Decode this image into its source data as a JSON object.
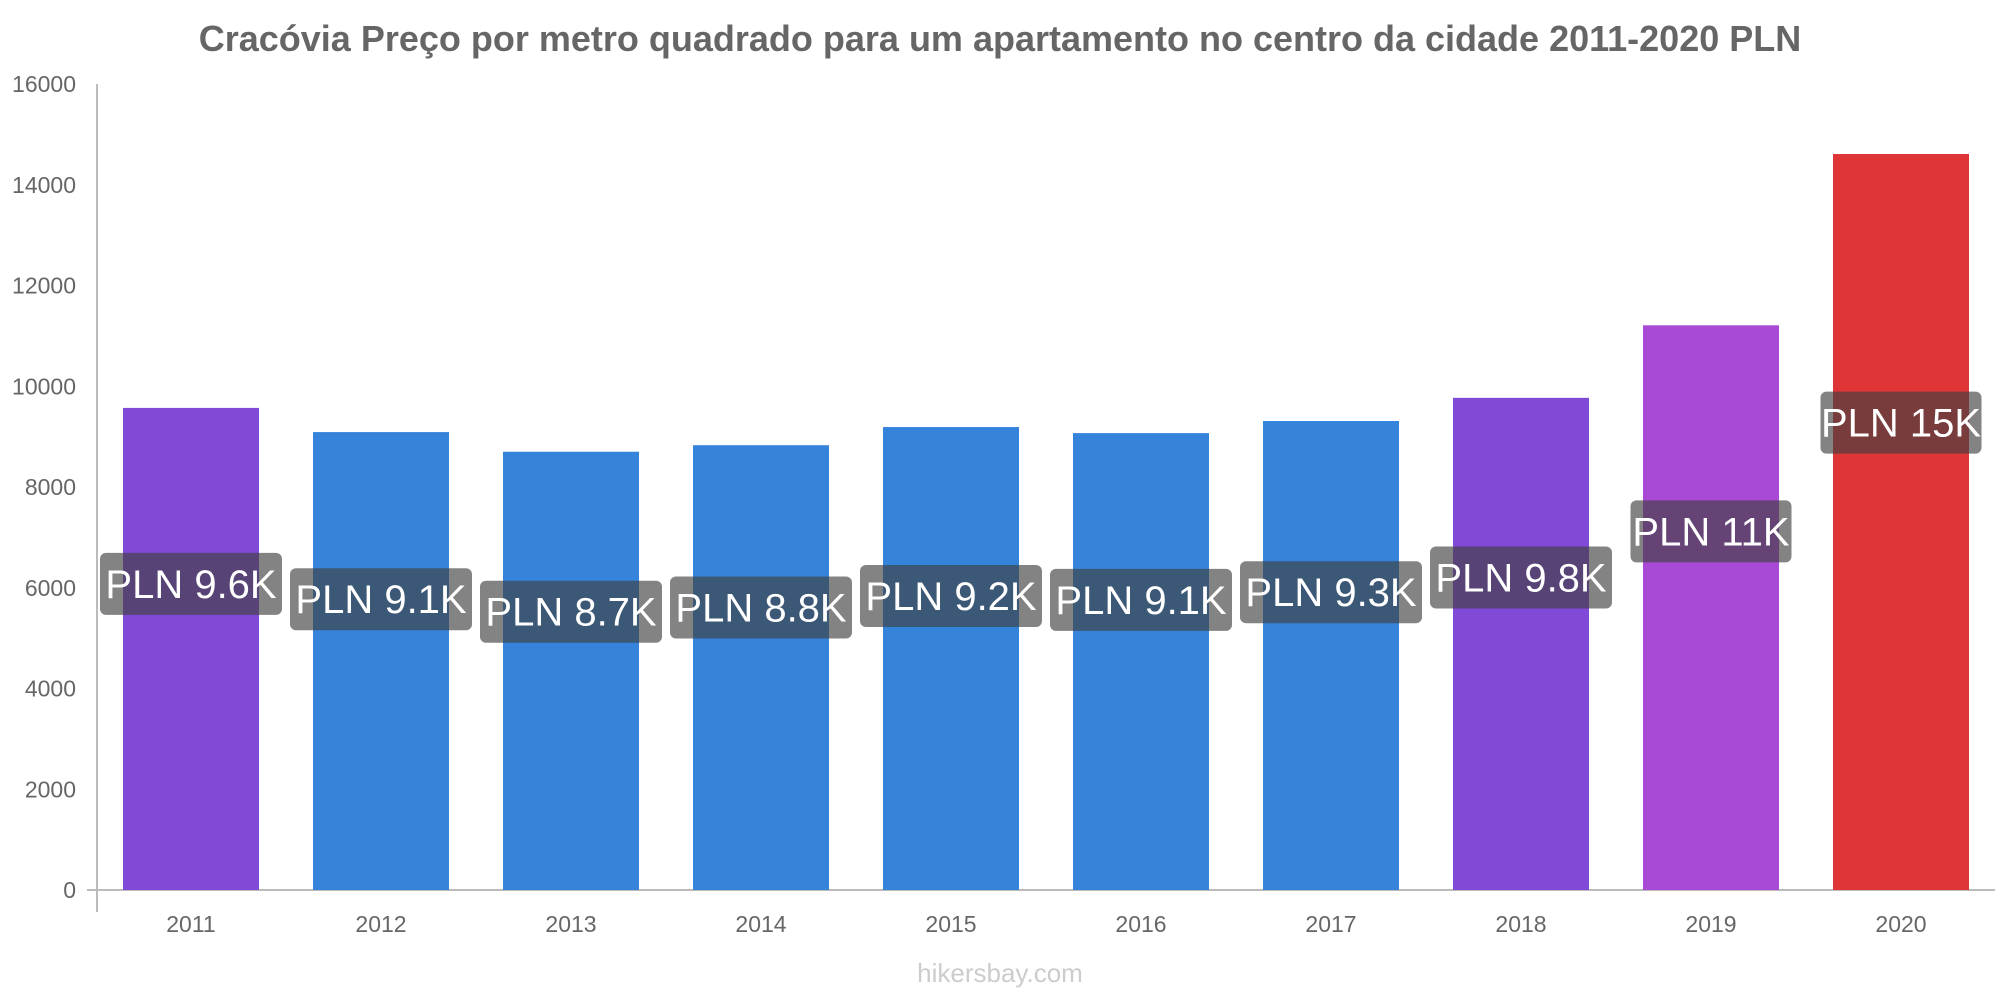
{
  "chart_data": {
    "type": "bar",
    "title": "Cracóvia Preço por metro quadrado para um apartamento no centro da cidade 2011-2020 PLN",
    "xlabel": "",
    "ylabel": "",
    "categories": [
      "2011",
      "2012",
      "2013",
      "2014",
      "2015",
      "2016",
      "2017",
      "2018",
      "2019",
      "2020"
    ],
    "values": [
      9570,
      9090,
      8700,
      8830,
      9190,
      9070,
      9310,
      9770,
      11210,
      14610
    ],
    "data_labels": [
      "PLN 9.6K",
      "PLN 9.1K",
      "PLN 8.7K",
      "PLN 8.8K",
      "PLN 9.2K",
      "PLN 9.1K",
      "PLN 9.3K",
      "PLN 9.8K",
      "PLN 11K",
      "PLN 15K"
    ],
    "bar_colors": [
      "#8049d6",
      "#3683dc",
      "#3683dc",
      "#3683dc",
      "#3683dc",
      "#3683dc",
      "#3683dc",
      "#8049d6",
      "#a94ad7",
      "#e03537"
    ],
    "ylim": [
      0,
      16000
    ],
    "yticks": [
      0,
      2000,
      4000,
      6000,
      8000,
      10000,
      12000,
      14000,
      16000
    ],
    "grid": false,
    "legend": "none"
  },
  "watermark": "hikersbay.com"
}
